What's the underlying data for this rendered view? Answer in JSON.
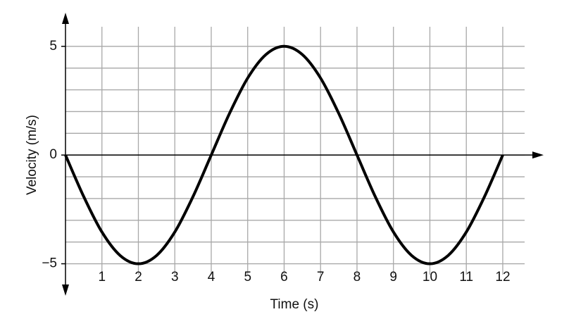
{
  "chart_data": {
    "type": "line",
    "x_label": "Time (s)",
    "y_label": "Velocity (m/s)",
    "x": [
      0,
      0.5,
      1,
      1.5,
      2,
      2.5,
      3,
      3.5,
      4,
      4.5,
      5,
      5.5,
      6,
      6.5,
      7,
      7.5,
      8,
      8.5,
      9,
      9.5,
      10,
      10.5,
      11,
      11.5,
      12
    ],
    "values": [
      0,
      -1.91,
      -3.54,
      -4.62,
      -5,
      -4.62,
      -3.54,
      -1.91,
      0,
      1.91,
      3.54,
      4.62,
      5,
      4.62,
      3.54,
      1.91,
      0,
      -1.91,
      -3.54,
      -4.62,
      -5,
      -4.62,
      -3.54,
      -1.91,
      0
    ],
    "color": "#000000",
    "xlim": [
      0,
      12.6
    ],
    "ylim": [
      -5.5,
      5.9
    ],
    "xticks": [
      1,
      2,
      3,
      4,
      5,
      6,
      7,
      8,
      9,
      10,
      11,
      12
    ],
    "yticks": [
      {
        "value": -5,
        "label": "−5"
      },
      0,
      5
    ],
    "y_minor_ticks": [
      -4,
      -3,
      -2,
      -1,
      1,
      2,
      3,
      4
    ],
    "grid": true
  }
}
